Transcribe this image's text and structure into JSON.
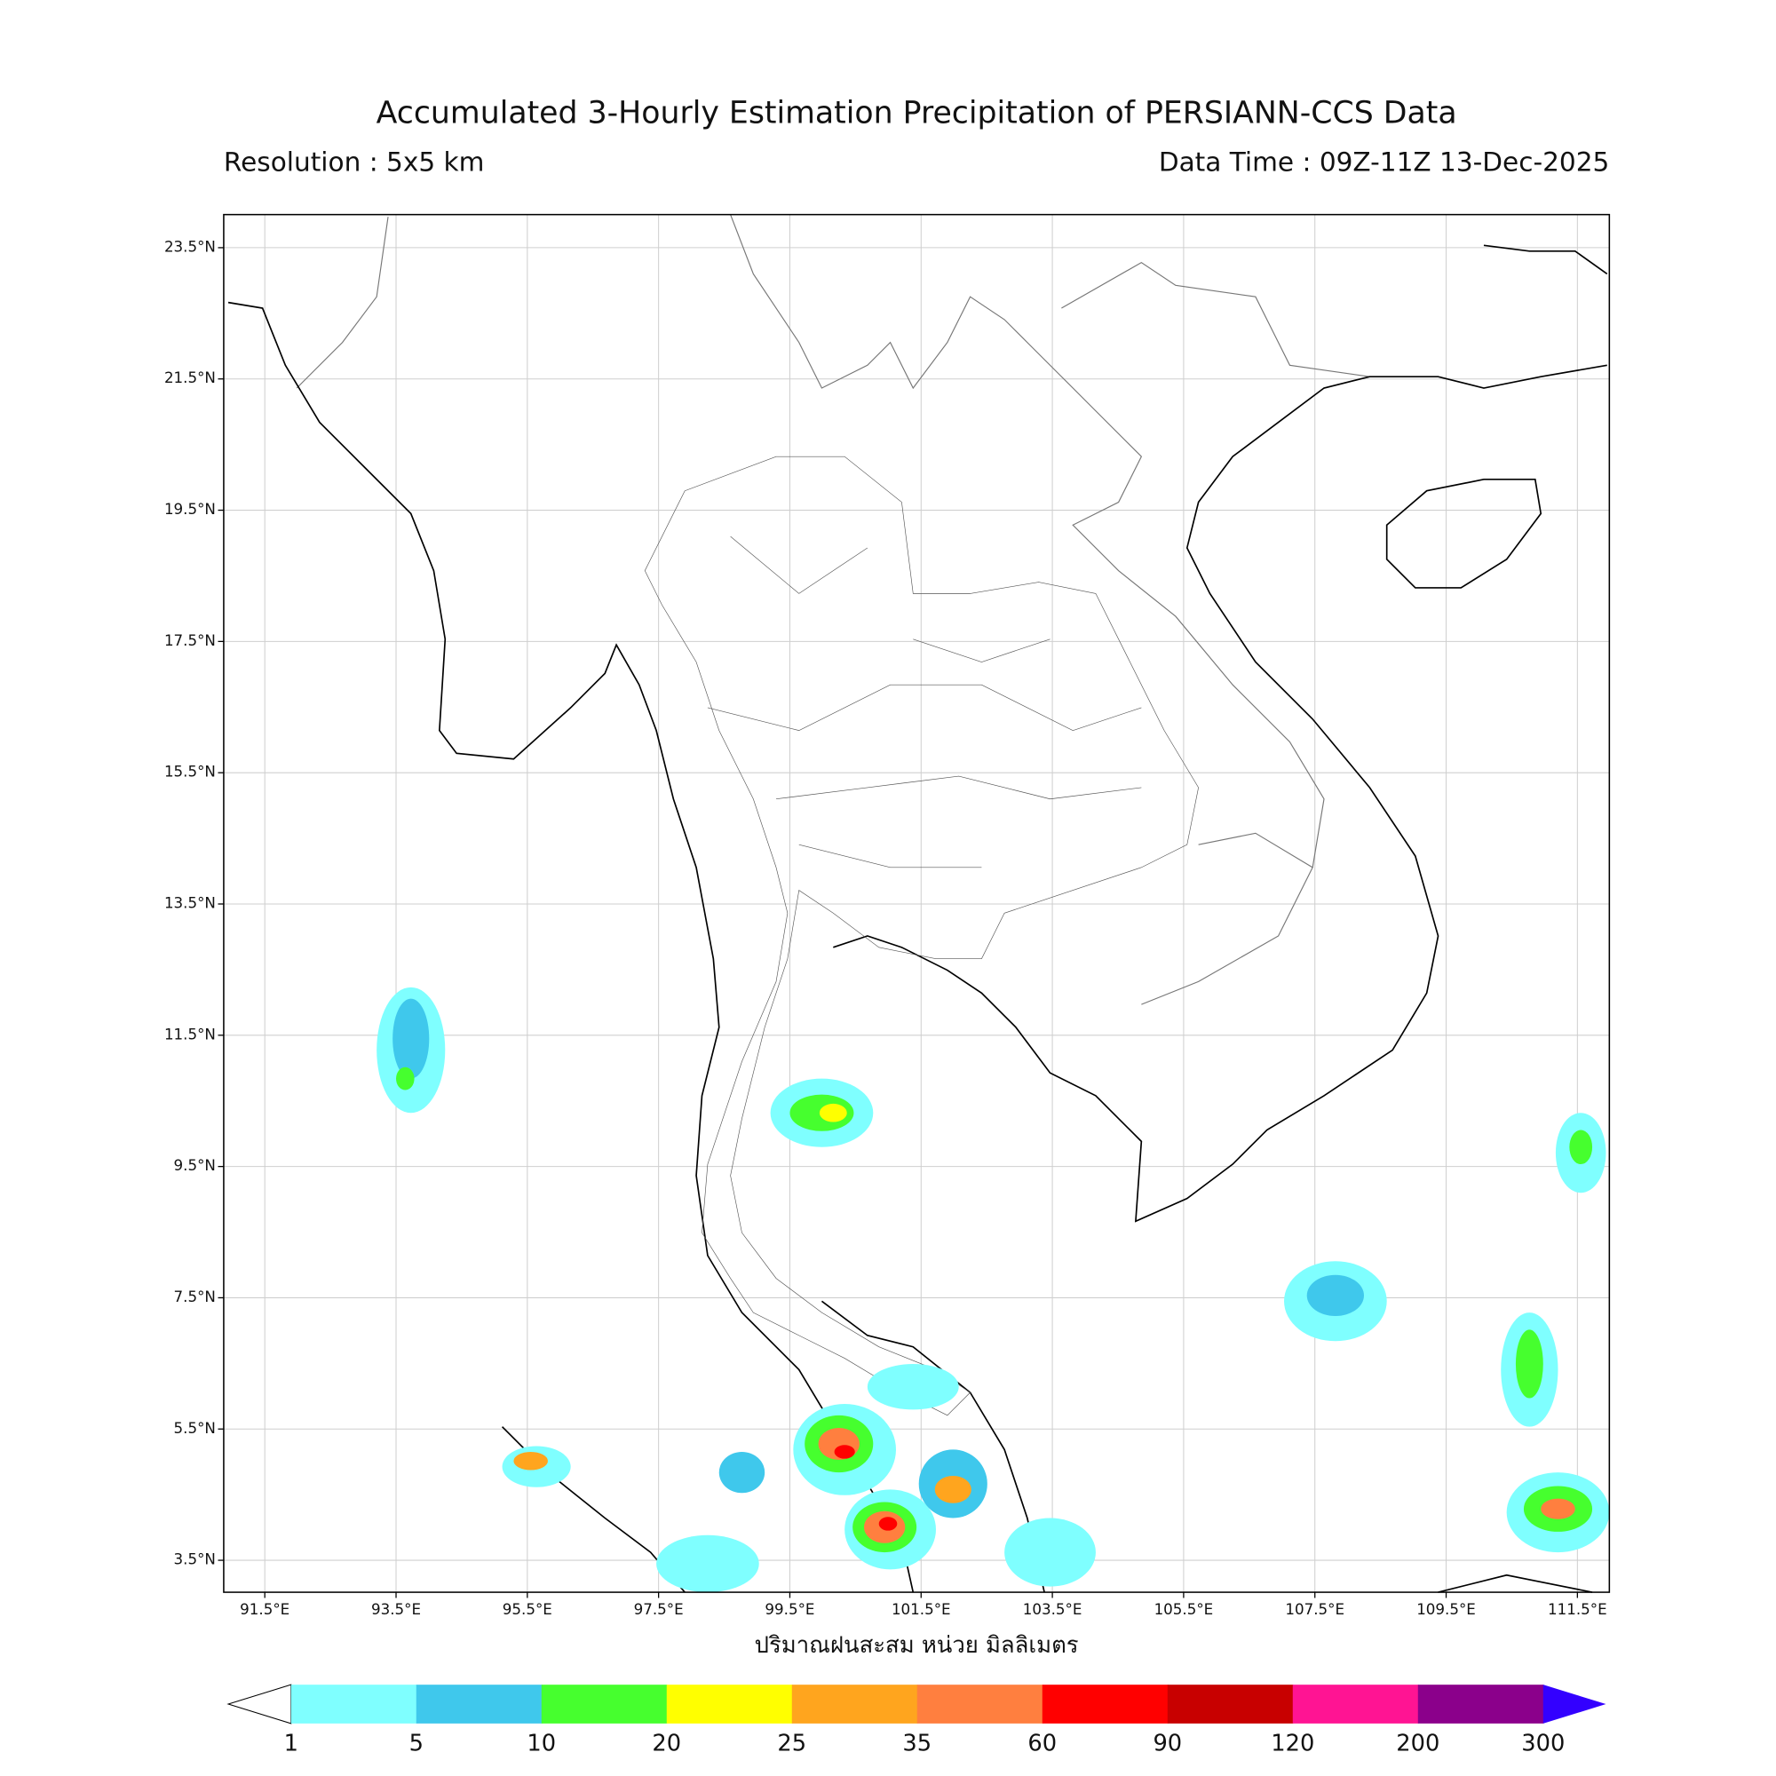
{
  "header": {
    "title": "Accumulated 3-Hourly Estimation Precipitation of PERSIANN-CCS Data",
    "resolution": "Resolution : 5x5 km",
    "data_time": "Data Time : 09Z-11Z 13-Dec-2025"
  },
  "map": {
    "lat_labels": [
      "23.5°N",
      "21.5°N",
      "19.5°N",
      "17.5°N",
      "15.5°N",
      "13.5°N",
      "11.5°N",
      "9.5°N",
      "7.5°N",
      "5.5°N",
      "3.5°N"
    ],
    "lon_labels": [
      "91.5°E",
      "93.5°E",
      "95.5°E",
      "97.5°E",
      "99.5°E",
      "101.5°E",
      "103.5°E",
      "105.5°E",
      "107.5°E",
      "109.5°E",
      "111.5°E"
    ],
    "xlabel": "ปริมาณฝนสะสม หน่วย มิลลิเมตร"
  },
  "colorbar": {
    "levels": [
      "1",
      "5",
      "10",
      "20",
      "25",
      "35",
      "60",
      "90",
      "120",
      "200",
      "300"
    ],
    "colors": [
      "#7fffff",
      "#3fc8ec",
      "#46ff2e",
      "#ffff00",
      "#ffa51e",
      "#ff7f3f",
      "#ff0000",
      "#c80000",
      "#ff1493",
      "#8b008b"
    ],
    "under_color": "#ffffff",
    "over_color": "#3300ff"
  }
}
